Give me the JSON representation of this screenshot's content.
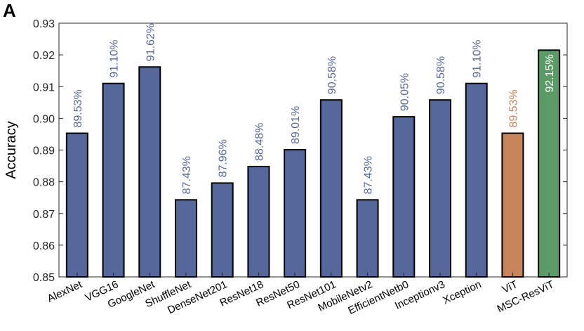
{
  "panel_label": "A",
  "chart_data": {
    "type": "bar",
    "ylabel": "Accuracy",
    "ylim": [
      0.85,
      0.93
    ],
    "yticks": [
      "0.85",
      "0.86",
      "0.87",
      "0.88",
      "0.89",
      "0.90",
      "0.91",
      "0.92",
      "0.93"
    ],
    "grid": false,
    "categories": [
      "AlexNet",
      "VGG16",
      "GoogleNet",
      "ShuffleNet",
      "DenseNet201",
      "ResNet18",
      "ResNet50",
      "ResNet101",
      "MobileNetv2",
      "EfficientNetb0",
      "Inceptionv3",
      "Xception",
      "ViT",
      "MSC-ResViT"
    ],
    "values": [
      0.8953,
      0.911,
      0.9162,
      0.8743,
      0.8796,
      0.8848,
      0.8901,
      0.9058,
      0.8743,
      0.9005,
      0.9058,
      0.911,
      0.8953,
      0.9215
    ],
    "labels": [
      "89.53%",
      "91.10%",
      "91.62%",
      "87.43%",
      "87.96%",
      "88.48%",
      "89.01%",
      "90.58%",
      "87.43%",
      "90.05%",
      "90.58%",
      "91.10%",
      "89.53%",
      "92.15%"
    ],
    "colors": {
      "default_bar": "#56679c",
      "default_label": "#56679c",
      "vit_bar": "#c7845b",
      "vit_label": "#c7845b",
      "proposed_bar": "#5c9a67",
      "proposed_label": "#ffffff"
    },
    "bar_color_keys": [
      "default",
      "default",
      "default",
      "default",
      "default",
      "default",
      "default",
      "default",
      "default",
      "default",
      "default",
      "default",
      "vit",
      "proposed"
    ]
  }
}
